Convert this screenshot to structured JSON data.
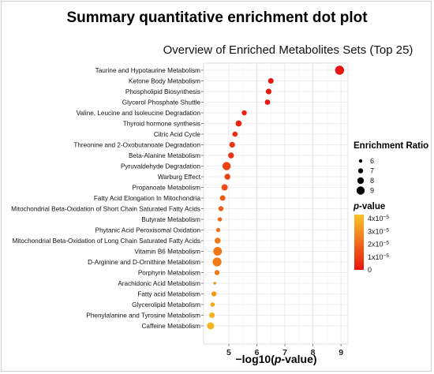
{
  "header": {
    "title": "Summary quantitative enrichment dot plot"
  },
  "chart_data": {
    "type": "scatter",
    "title": "Overview of Enriched Metabolites Sets (Top 25)",
    "xlabel_prefix": "−log10(",
    "xlabel_italic": "p",
    "xlabel_suffix": "-value)",
    "xlim": [
      4.1,
      9.25
    ],
    "xticks": [
      5,
      6,
      7,
      8,
      9
    ],
    "grid": true,
    "categories": [
      "Taurine and Hypotaurine Metabolism",
      "Ketone Body Metabolism",
      "Phospholipid Biosynthesis",
      "Glycerol Phosphate Shuttle",
      "Valine, Leucine and Isoleucine Degradation",
      "Thyroid hormone synthesis",
      "Citric Acid Cycle",
      "Threonine and 2-Oxobutanoate Degradation",
      "Beta-Alanine Metabolism",
      "Pyruvaldehyde Degradation",
      "Warburg Effect",
      "Propanoate Metabolism",
      "Fatty Acid Elongation In Mitochondria",
      "Mitochondrial Beta-Oxidation of Short Chain Saturated Fatty Acids",
      "Butyrate Metabolism",
      "Phytanic Acid Peroxisomal Oxidation",
      "Mitochondrial Beta-Oxidation of Long Chain Saturated Fatty Acids",
      "Vitamin B6 Metabolism",
      "D-Arginine and D-Ornithine Metabolism",
      "Porphyrin Metabolism",
      "Arachidonic Acid Metabolism",
      "Fatty acid Metabolism",
      "Glycerolipid Metabolism",
      "Phenylalanine and Tyrosine Metabolism",
      "Caffeine Metabolism"
    ],
    "x": [
      8.95,
      6.5,
      6.42,
      6.38,
      5.55,
      5.35,
      5.22,
      5.12,
      5.08,
      4.92,
      4.95,
      4.85,
      4.78,
      4.72,
      4.68,
      4.62,
      4.6,
      4.6,
      4.58,
      4.58,
      4.5,
      4.47,
      4.42,
      4.4,
      4.35
    ],
    "enrichment_ratio": [
      9.5,
      7.3,
      7.4,
      7.2,
      7.0,
      7.7,
      7.1,
      7.4,
      7.5,
      9.0,
      7.5,
      7.8,
      7.3,
      7.0,
      6.5,
      6.5,
      7.6,
      9.3,
      9.4,
      7.0,
      5.6,
      7.0,
      6.6,
      7.3,
      8.3
    ],
    "p_value": [
      1e-09,
      8e-07,
      9e-07,
      1e-06,
      2.8e-06,
      4.5e-06,
      6e-06,
      7.6e-06,
      8.3e-06,
      1.2e-05,
      1.12e-05,
      1.4e-05,
      1.66e-05,
      1.9e-05,
      2.1e-05,
      2.4e-05,
      2.5e-05,
      2.5e-05,
      2.6e-05,
      2.6e-05,
      3.2e-05,
      3.4e-05,
      3.8e-05,
      4e-05,
      4.5e-05
    ],
    "size_legend": {
      "title": "Enrichment Ratio",
      "values": [
        6,
        7,
        8,
        9
      ],
      "labels": [
        "6",
        "7",
        "8",
        "9"
      ]
    },
    "color_legend": {
      "title_italic": "p",
      "title_suffix": "-value",
      "labels": [
        "4x10",
        "3x10",
        "2x10",
        "1x10",
        "0"
      ],
      "exponent": "−5",
      "values": [
        4e-05,
        3e-05,
        2e-05,
        1e-05,
        0
      ],
      "low_color": "#e8140f",
      "high_color": "#f7b21c"
    },
    "legend_placement": "right"
  }
}
